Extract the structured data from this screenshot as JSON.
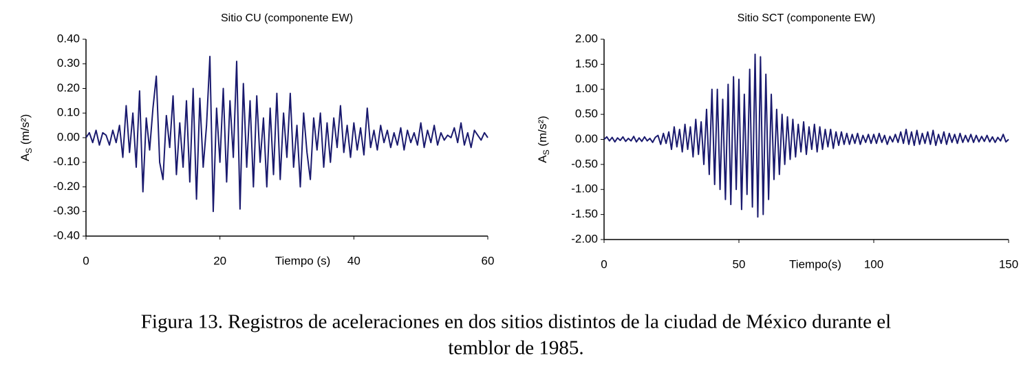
{
  "chart_data": [
    {
      "type": "line",
      "title": "Sitio CU (componente EW)",
      "x_label": "Tiempo (s)",
      "y_label": "A",
      "y_label_sub": "S",
      "y_label_unit": " (m/s²)",
      "color": "#1a1a6e",
      "xlim": [
        0,
        60
      ],
      "xticks": [
        0,
        20,
        40,
        60
      ],
      "ylim": [
        -0.4,
        0.4
      ],
      "yticks": [
        {
          "value": -0.4,
          "label": "-0.40"
        },
        {
          "value": -0.3,
          "label": "-0.30"
        },
        {
          "value": -0.2,
          "label": "-0.20"
        },
        {
          "value": -0.1,
          "label": "-0.10"
        },
        {
          "value": 0,
          "label": "0.00"
        },
        {
          "value": 0.1,
          "label": "0.10"
        },
        {
          "value": 0.2,
          "label": "0.20"
        },
        {
          "value": 0.3,
          "label": "0.30"
        },
        {
          "value": 0.4,
          "label": "0.40"
        }
      ],
      "x": [
        0,
        0.5,
        1,
        1.5,
        2,
        2.5,
        3,
        3.5,
        4,
        4.5,
        5,
        5.5,
        6,
        6.5,
        7,
        7.5,
        8,
        8.5,
        9,
        9.5,
        10,
        10.5,
        11,
        11.5,
        12,
        12.5,
        13,
        13.5,
        14,
        14.5,
        15,
        15.5,
        16,
        16.5,
        17,
        17.5,
        18,
        18.5,
        19,
        19.5,
        20,
        20.5,
        21,
        21.5,
        22,
        22.5,
        23,
        23.5,
        24,
        24.5,
        25,
        25.5,
        26,
        26.5,
        27,
        27.5,
        28,
        28.5,
        29,
        29.5,
        30,
        30.5,
        31,
        31.5,
        32,
        32.5,
        33,
        33.5,
        34,
        34.5,
        35,
        35.5,
        36,
        36.5,
        37,
        37.5,
        38,
        38.5,
        39,
        39.5,
        40,
        40.5,
        41,
        41.5,
        42,
        42.5,
        43,
        43.5,
        44,
        44.5,
        45,
        45.5,
        46,
        46.5,
        47,
        47.5,
        48,
        48.5,
        49,
        49.5,
        50,
        50.5,
        51,
        51.5,
        52,
        52.5,
        53,
        53.5,
        54,
        54.5,
        55,
        55.5,
        56,
        56.5,
        57,
        57.5,
        58,
        58.5,
        59,
        59.5,
        60
      ],
      "values": [
        0.0,
        0.02,
        -0.02,
        0.03,
        -0.03,
        0.02,
        0.01,
        -0.03,
        0.03,
        -0.02,
        0.05,
        -0.08,
        0.13,
        -0.06,
        0.1,
        -0.12,
        0.19,
        -0.22,
        0.08,
        -0.05,
        0.12,
        0.25,
        -0.1,
        -0.17,
        0.09,
        -0.04,
        0.17,
        -0.15,
        0.06,
        -0.12,
        0.15,
        -0.18,
        0.2,
        -0.25,
        0.16,
        -0.12,
        0.05,
        0.33,
        -0.3,
        0.12,
        -0.1,
        0.2,
        -0.18,
        0.15,
        -0.08,
        0.31,
        -0.29,
        0.22,
        -0.12,
        0.15,
        -0.2,
        0.17,
        -0.1,
        0.08,
        -0.2,
        0.12,
        -0.15,
        0.18,
        -0.17,
        0.1,
        -0.08,
        0.18,
        -0.12,
        0.05,
        -0.2,
        0.1,
        -0.06,
        -0.17,
        0.08,
        -0.05,
        0.1,
        -0.12,
        0.06,
        -0.1,
        0.08,
        -0.04,
        0.13,
        -0.06,
        0.05,
        -0.08,
        0.06,
        -0.05,
        0.04,
        -0.07,
        0.12,
        -0.04,
        0.03,
        -0.05,
        0.05,
        -0.02,
        0.03,
        -0.04,
        0.02,
        -0.03,
        0.04,
        -0.05,
        0.03,
        -0.02,
        0.02,
        -0.03,
        0.06,
        -0.04,
        0.03,
        -0.02,
        0.05,
        -0.03,
        0.02,
        -0.01,
        0.01,
        0.0,
        0.04,
        -0.02,
        0.06,
        -0.03,
        0.02,
        -0.04,
        0.03,
        0.01,
        -0.01,
        0.02,
        0.0
      ]
    },
    {
      "type": "line",
      "title": "Sitio SCT (componente EW)",
      "x_label": "Tiempo(s)",
      "y_label": "A",
      "y_label_sub": "S",
      "y_label_unit": " (m/s²)",
      "color": "#1a1a6e",
      "xlim": [
        0,
        150
      ],
      "xticks": [
        0,
        50,
        100,
        150
      ],
      "ylim": [
        -2,
        2
      ],
      "yticks": [
        {
          "value": -2,
          "label": "-2.00"
        },
        {
          "value": -1.5,
          "label": "-1.50"
        },
        {
          "value": -1,
          "label": "-1.00"
        },
        {
          "value": -0.5,
          "label": "-0.50"
        },
        {
          "value": 0,
          "label": "0.00"
        },
        {
          "value": 0.5,
          "label": "0.50"
        },
        {
          "value": 1,
          "label": "1.00"
        },
        {
          "value": 1.5,
          "label": "1.50"
        },
        {
          "value": 2,
          "label": "2.00"
        }
      ],
      "x": [
        0,
        1,
        2,
        3,
        4,
        5,
        6,
        7,
        8,
        9,
        10,
        11,
        12,
        13,
        14,
        15,
        16,
        17,
        18,
        19,
        20,
        21,
        22,
        23,
        24,
        25,
        26,
        27,
        28,
        29,
        30,
        31,
        32,
        33,
        34,
        35,
        36,
        37,
        38,
        39,
        40,
        41,
        42,
        43,
        44,
        45,
        46,
        47,
        48,
        49,
        50,
        51,
        52,
        53,
        54,
        55,
        56,
        57,
        58,
        59,
        60,
        61,
        62,
        63,
        64,
        65,
        66,
        67,
        68,
        69,
        70,
        71,
        72,
        73,
        74,
        75,
        76,
        77,
        78,
        79,
        80,
        81,
        82,
        83,
        84,
        85,
        86,
        87,
        88,
        89,
        90,
        91,
        92,
        93,
        94,
        95,
        96,
        97,
        98,
        99,
        100,
        101,
        102,
        103,
        104,
        105,
        106,
        107,
        108,
        109,
        110,
        111,
        112,
        113,
        114,
        115,
        116,
        117,
        118,
        119,
        120,
        121,
        122,
        123,
        124,
        125,
        126,
        127,
        128,
        129,
        130,
        131,
        132,
        133,
        134,
        135,
        136,
        137,
        138,
        139,
        140,
        141,
        142,
        143,
        144,
        145,
        146,
        147,
        148,
        149,
        150
      ],
      "values": [
        0.0,
        0.05,
        -0.03,
        0.04,
        -0.05,
        0.03,
        -0.02,
        0.05,
        -0.04,
        0.02,
        -0.03,
        0.06,
        -0.05,
        0.03,
        -0.04,
        0.05,
        -0.03,
        0.02,
        -0.06,
        0.04,
        0.08,
        -0.1,
        0.12,
        -0.08,
        0.15,
        -0.2,
        0.25,
        -0.15,
        0.2,
        -0.25,
        0.3,
        -0.2,
        0.25,
        -0.35,
        0.4,
        -0.3,
        0.35,
        -0.5,
        0.6,
        -0.7,
        1.0,
        -0.9,
        1.0,
        -1.0,
        0.8,
        -1.2,
        1.1,
        -1.3,
        1.25,
        -1.0,
        1.2,
        -1.4,
        0.9,
        -1.1,
        1.4,
        -1.35,
        1.7,
        -1.55,
        1.65,
        -1.5,
        1.3,
        -1.2,
        0.9,
        -0.8,
        0.6,
        -0.7,
        0.5,
        -0.5,
        0.45,
        -0.4,
        0.4,
        -0.35,
        0.3,
        -0.25,
        0.35,
        -0.3,
        0.25,
        -0.2,
        0.3,
        -0.25,
        0.25,
        -0.2,
        0.2,
        -0.15,
        0.2,
        -0.18,
        0.15,
        -0.12,
        0.15,
        -0.1,
        0.12,
        -0.1,
        0.1,
        -0.08,
        0.12,
        -0.1,
        0.08,
        -0.06,
        0.1,
        -0.08,
        0.1,
        -0.08,
        0.12,
        -0.06,
        0.08,
        -0.1,
        0.06,
        -0.05,
        0.1,
        -0.06,
        0.15,
        -0.08,
        0.2,
        -0.1,
        0.15,
        -0.12,
        0.18,
        -0.1,
        0.12,
        -0.08,
        0.15,
        -0.1,
        0.18,
        -0.12,
        0.1,
        -0.08,
        0.15,
        -0.1,
        0.12,
        -0.06,
        0.1,
        -0.08,
        0.12,
        -0.06,
        0.08,
        -0.05,
        0.1,
        -0.06,
        0.08,
        -0.05,
        0.06,
        -0.04,
        0.08,
        -0.05,
        0.05,
        -0.06,
        0.04,
        -0.03,
        0.1,
        -0.05,
        0.0
      ]
    }
  ],
  "caption": [
    "Figura 13. Registros de aceleraciones en dos sitios distintos de la ciudad de México durante el",
    "temblor de 1985."
  ]
}
